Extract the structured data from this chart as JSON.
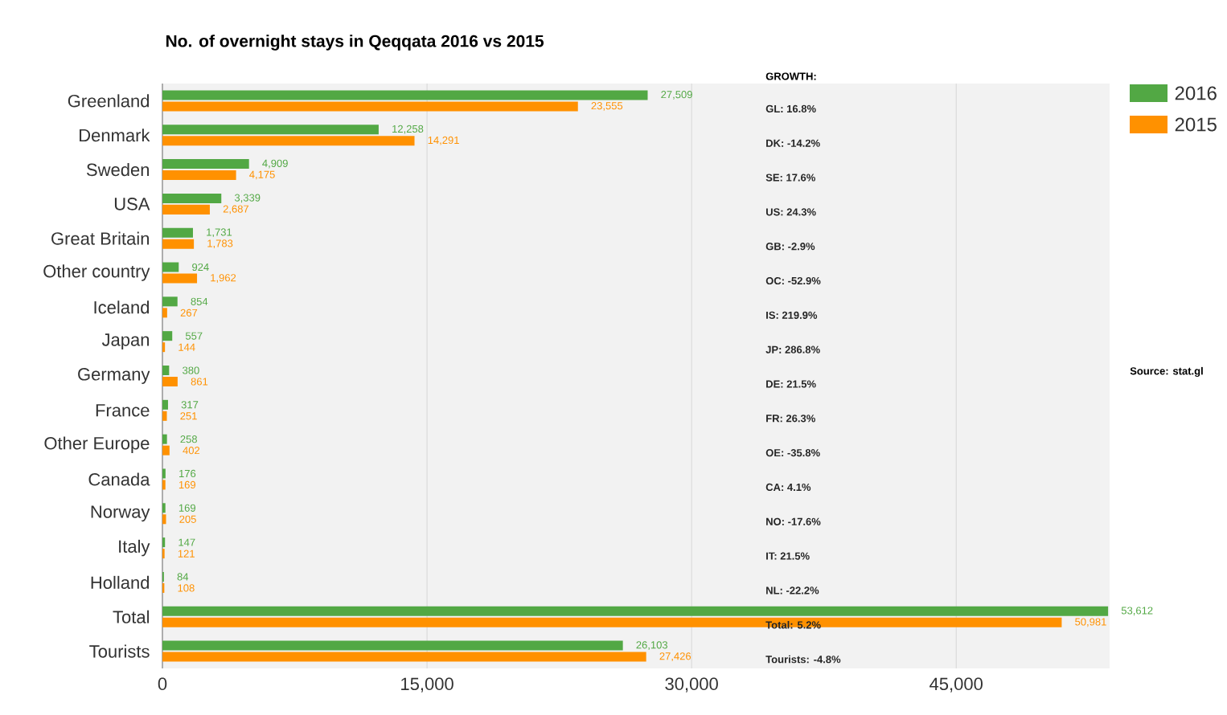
{
  "chart_data": {
    "type": "bar",
    "orientation": "horizontal",
    "title": "No. of overnight stays in Qeqqata 2016 vs 2015",
    "categories": [
      "Greenland",
      "Denmark",
      "Sweden",
      "USA",
      "Great Britain",
      "Other country",
      "Iceland",
      "Japan",
      "Germany",
      "France",
      "Other Europe",
      "Canada",
      "Norway",
      "Italy",
      "Holland",
      "Total",
      "Tourists"
    ],
    "series": [
      {
        "name": "2016",
        "color": "#52a844",
        "values": [
          27509,
          12258,
          4909,
          3339,
          1731,
          924,
          854,
          557,
          380,
          317,
          258,
          176,
          169,
          147,
          84,
          53612,
          26103
        ],
        "value_labels": [
          "27,509",
          "12,258",
          "4,909",
          "3,339",
          "1,731",
          "924",
          "854",
          "557",
          "380",
          "317",
          "258",
          "176",
          "169",
          "147",
          "84",
          "53,612",
          "26,103"
        ]
      },
      {
        "name": "2015",
        "color": "#ff9100",
        "values": [
          23555,
          14291,
          4175,
          2687,
          1783,
          1962,
          267,
          144,
          861,
          251,
          402,
          169,
          205,
          121,
          108,
          50981,
          27426
        ],
        "value_labels": [
          "23,555",
          "14,291",
          "4,175",
          "2,687",
          "1,783",
          "1,962",
          "267",
          "144",
          "861",
          "251",
          "402",
          "169",
          "205",
          "121",
          "108",
          "50,981",
          "27,426"
        ]
      }
    ],
    "xlim": [
      0,
      53700
    ],
    "xticks": [
      0,
      {
        "value": 15000,
        "label": "15,000"
      },
      {
        "value": 30000,
        "label": "30,000"
      },
      {
        "value": 45000,
        "label": "45,000"
      }
    ],
    "grid": "x",
    "legend": "top right",
    "annotations": [
      "GROWTH:",
      "GL: 16.8%",
      "DK: -14.2%",
      "SE: 17.6%",
      "US: 24.3%",
      "GB: -2.9%",
      "OC: -52.9%",
      "IS: 219.9%",
      "JP: 286.8%",
      "DE: 21.5%",
      "FR: 26.3%",
      "OE: -35.8%",
      "CA: 4.1%",
      "NO: -17.6%",
      "IT: 21.5%",
      "NL: -22.2%",
      "Total: 5.2%",
      "Tourists: -4.8%",
      "Source: stat.gl"
    ]
  }
}
